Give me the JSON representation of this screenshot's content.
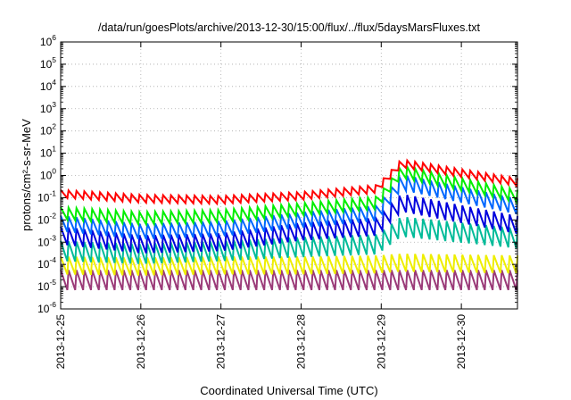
{
  "chart_data": {
    "type": "line",
    "title": "/data/run/goesPlots/archive/2013-12-30/15:00/flux/../flux/5daysMarsFluxes.txt",
    "xlabel": "Coordinated Universal Time (UTC)",
    "ylabel": "protons/cm²-s-sr-MeV",
    "yscale": "log",
    "ylim_exponents": [
      -6,
      6
    ],
    "ytick_labels": [
      {
        "base": "10",
        "exp": "6"
      },
      {
        "base": "10",
        "exp": "5"
      },
      {
        "base": "10",
        "exp": "4"
      },
      {
        "base": "10",
        "exp": "3"
      },
      {
        "base": "10",
        "exp": "2"
      },
      {
        "base": "10",
        "exp": "1"
      },
      {
        "base": "10",
        "exp": "0"
      },
      {
        "base": "10",
        "exp": "-1"
      },
      {
        "base": "10",
        "exp": "-2"
      },
      {
        "base": "10",
        "exp": "-3"
      },
      {
        "base": "10",
        "exp": "-4"
      },
      {
        "base": "10",
        "exp": "-5"
      },
      {
        "base": "10",
        "exp": "-6"
      }
    ],
    "xticks": [
      "2013-12-25",
      "2013-12-26",
      "2013-12-27",
      "2013-12-28",
      "2013-12-29",
      "2013-12-30"
    ],
    "xrange_days": [
      0,
      5.7
    ],
    "grid": true,
    "legend": "none",
    "series": [
      {
        "color": "#ff0000",
        "values": [
          0.15,
          0.09,
          0.08,
          0.12,
          0.25,
          3.5,
          0.5
        ],
        "x_days": [
          0,
          1,
          2,
          3,
          3.95,
          4.25,
          5.7
        ],
        "amp_decades": 0.35
      },
      {
        "color": "#00ee00",
        "values": [
          0.02,
          0.012,
          0.015,
          0.03,
          0.06,
          1.5,
          0.12
        ],
        "x_days": [
          0,
          1,
          2,
          3,
          3.95,
          4.25,
          5.7
        ],
        "amp_decades": 0.55
      },
      {
        "color": "#0066ff",
        "values": [
          0.007,
          0.003,
          0.004,
          0.01,
          0.02,
          0.5,
          0.04
        ],
        "x_days": [
          0,
          1,
          2,
          3,
          3.95,
          4.25,
          5.7
        ],
        "amp_decades": 0.7
      },
      {
        "color": "#0000dd",
        "values": [
          0.002,
          0.0008,
          0.001,
          0.003,
          0.005,
          0.06,
          0.006
        ],
        "x_days": [
          0,
          1,
          2,
          3,
          3.95,
          4.25,
          5.7
        ],
        "amp_decades": 0.8
      },
      {
        "color": "#00bb99",
        "values": [
          0.0004,
          0.0003,
          0.0004,
          0.0006,
          0.0008,
          0.005,
          0.0015
        ],
        "x_days": [
          0,
          1,
          2,
          3,
          3.95,
          4.25,
          5.7
        ],
        "amp_decades": 0.9
      },
      {
        "color": "#eeee00",
        "values": [
          9e-05,
          8e-05,
          9e-05,
          9e-05,
          0.0001,
          0.00012,
          0.0001
        ],
        "x_days": [
          0,
          1,
          2,
          3,
          3.95,
          4.25,
          5.7
        ],
        "amp_decades": 0.8
      },
      {
        "color": "#9a3a78",
        "values": [
          2e-05,
          2e-05,
          2e-05,
          2e-05,
          2e-05,
          2e-05,
          2e-05
        ],
        "x_days": [
          0,
          1,
          2,
          3,
          3.95,
          4.25,
          5.7
        ],
        "amp_decades": 0.9
      }
    ]
  }
}
